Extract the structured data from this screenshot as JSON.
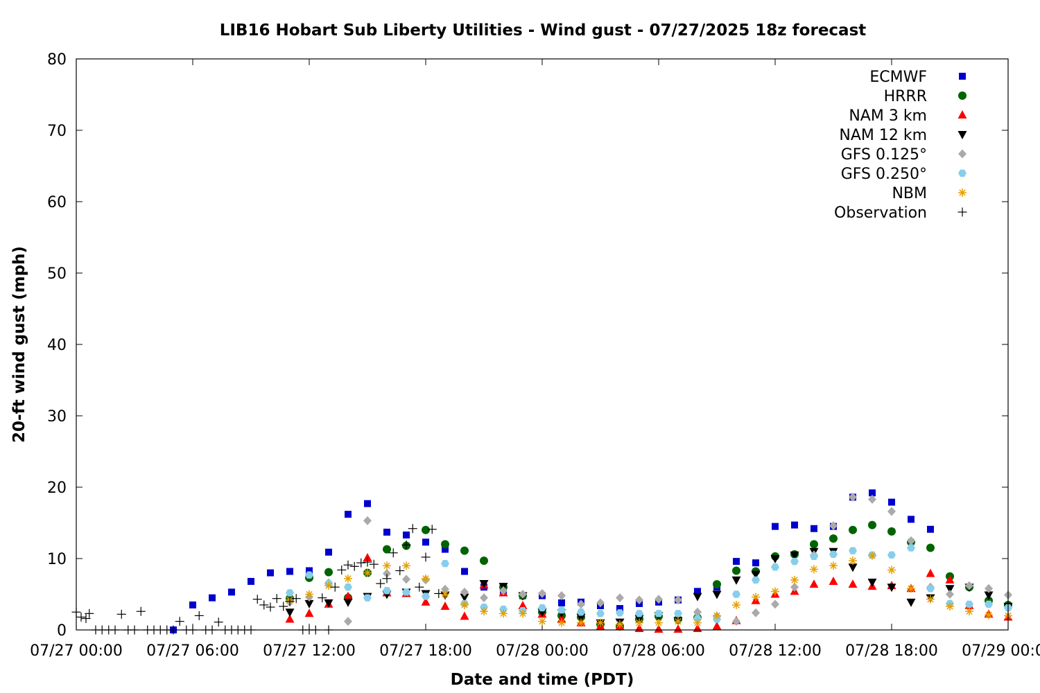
{
  "chart_data": {
    "type": "scatter",
    "title": "LIB16 Hobart Sub Liberty Utilities - Wind gust - 07/27/2025 18z forecast",
    "xlabel": "Date and time (PDT)",
    "ylabel": "20-ft wind gust (mph)",
    "ylim": [
      0,
      80
    ],
    "yticks": [
      0,
      10,
      20,
      30,
      40,
      50,
      60,
      70,
      80
    ],
    "xlim_hours": [
      0,
      48
    ],
    "xticks": [
      {
        "hour": 0,
        "label": "07/27 00:00"
      },
      {
        "hour": 6,
        "label": "07/27 06:00"
      },
      {
        "hour": 12,
        "label": "07/27 12:00"
      },
      {
        "hour": 18,
        "label": "07/27 18:00"
      },
      {
        "hour": 24,
        "label": "07/28 00:00"
      },
      {
        "hour": 30,
        "label": "07/28 06:00"
      },
      {
        "hour": 36,
        "label": "07/28 12:00"
      },
      {
        "hour": 42,
        "label": "07/28 18:00"
      },
      {
        "hour": 48,
        "label": "07/29 00:00"
      }
    ],
    "x_note": "x values are hours after 07/27 00:00 PDT",
    "legend_position": "top-right",
    "grid": false,
    "series": [
      {
        "name": "ECMWF",
        "marker": "square",
        "color": "#0000cc",
        "x": [
          5,
          6,
          7,
          8,
          9,
          10,
          11,
          12,
          13,
          14,
          15,
          16,
          17,
          18,
          19,
          20,
          21,
          22,
          23,
          24,
          25,
          26,
          27,
          28,
          29,
          30,
          31,
          32,
          33,
          34,
          35,
          36,
          37,
          38,
          39,
          40,
          41,
          42,
          43,
          44
        ],
        "y": [
          0,
          3.5,
          4.5,
          5.3,
          6.8,
          8,
          8.2,
          8.3,
          10.9,
          16.2,
          17.7,
          13.7,
          13.3,
          12.3,
          11.3,
          8.2,
          6,
          5.5,
          4.8,
          4.8,
          3.8,
          3.9,
          3.4,
          3,
          3.7,
          3.9,
          4.2,
          5.4,
          6,
          9.6,
          9.4,
          14.5,
          14.7,
          14.2,
          14.5,
          18.6,
          19.2,
          17.9,
          15.5,
          14.1
        ]
      },
      {
        "name": "HRRR",
        "marker": "circle",
        "color": "#006400",
        "x": [
          11,
          12,
          13,
          14,
          15,
          16,
          17,
          18,
          19,
          20,
          21,
          22,
          23,
          24,
          25,
          26,
          27,
          28,
          29,
          30,
          31,
          32,
          33,
          34,
          35,
          36,
          37,
          38,
          39,
          40,
          41,
          42,
          43,
          44,
          45,
          46,
          47,
          48
        ],
        "y": [
          4.4,
          7.3,
          8.1,
          4.5,
          8,
          11.3,
          11.8,
          14,
          12,
          11.1,
          9.7,
          6,
          4.8,
          2.5,
          2,
          1.8,
          0.8,
          0.5,
          1.5,
          1.9,
          1.5,
          1.7,
          6.4,
          8.3,
          8.2,
          10.3,
          10.6,
          12,
          12.8,
          14,
          14.7,
          13.8,
          12.3,
          11.5,
          7.5,
          6,
          4.1,
          3.5
        ]
      },
      {
        "name": "NAM 3 km",
        "marker": "triangle-up",
        "color": "#ff0000",
        "x": [
          11,
          12,
          13,
          14,
          15,
          16,
          17,
          18,
          19,
          20,
          21,
          22,
          23,
          24,
          25,
          26,
          27,
          28,
          29,
          30,
          31,
          32,
          33,
          34,
          35,
          36,
          37,
          38,
          39,
          40,
          41,
          42,
          43,
          44,
          45,
          46,
          47,
          48
        ],
        "y": [
          1.5,
          2.3,
          3.6,
          4.7,
          10.1,
          5.2,
          5.1,
          3.9,
          3.3,
          1.9,
          6.3,
          5.2,
          3.4,
          2.2,
          1.5,
          1,
          0.5,
          0.5,
          0.2,
          0.1,
          0.1,
          0.2,
          0.5,
          1.3,
          4.1,
          5,
          5.4,
          6.4,
          6.8,
          6.4,
          6.1,
          6.2,
          5.8,
          7.9,
          7,
          3.4,
          2.2,
          1.8
        ]
      },
      {
        "name": "NAM 12 km",
        "marker": "triangle-down",
        "color": "#000000",
        "x": [
          11,
          12,
          13,
          14,
          15,
          16,
          17,
          18,
          19,
          20,
          21,
          22,
          23,
          24,
          25,
          26,
          27,
          28,
          29,
          30,
          31,
          32,
          33,
          34,
          35,
          36,
          37,
          38,
          39,
          40,
          41,
          42,
          43,
          44,
          45,
          46,
          47,
          48
        ],
        "y": [
          2.5,
          3.7,
          3.8,
          3.9,
          4.7,
          5,
          5.3,
          5.1,
          4.9,
          4.6,
          6.5,
          6.1,
          4.8,
          2.5,
          2.4,
          1.8,
          1,
          1.1,
          1.6,
          2,
          1.3,
          4.7,
          5,
          7,
          7.8,
          10,
          10.5,
          11,
          11,
          8.8,
          6.7,
          6,
          3.9,
          4.5,
          5.8,
          6,
          4.9,
          3.3
        ]
      },
      {
        "name": "GFS 0.125°",
        "marker": "diamond",
        "color": "#aaaaaa",
        "x": [
          11,
          12,
          13,
          14,
          15,
          16,
          17,
          18,
          19,
          20,
          21,
          22,
          23,
          24,
          25,
          26,
          27,
          28,
          29,
          30,
          31,
          32,
          33,
          34,
          35,
          36,
          37,
          38,
          39,
          40,
          41,
          42,
          43,
          44,
          45,
          46,
          47,
          48
        ],
        "y": [
          3.9,
          4.6,
          6.6,
          1.2,
          15.3,
          7.9,
          7.1,
          7,
          5.7,
          5.3,
          4.5,
          5.5,
          5,
          5.1,
          4.8,
          3.6,
          3.8,
          4.5,
          4.2,
          4.3,
          4.2,
          2.5,
          1.9,
          1.2,
          2.4,
          3.6,
          6,
          10.5,
          14.6,
          18.6,
          18.3,
          16.6,
          12.5,
          6,
          5,
          6.2,
          5.8,
          4.9
        ]
      },
      {
        "name": "GFS 0.250°",
        "marker": "hexagon",
        "color": "#87ceeb",
        "x": [
          11,
          12,
          13,
          14,
          15,
          16,
          17,
          18,
          19,
          20,
          21,
          22,
          23,
          24,
          25,
          26,
          27,
          28,
          29,
          30,
          31,
          32,
          33,
          34,
          35,
          36,
          37,
          38,
          39,
          40,
          41,
          42,
          43,
          44,
          45,
          46,
          47,
          48
        ],
        "y": [
          5.2,
          7.7,
          6.5,
          6,
          4.5,
          5.5,
          5.3,
          4.7,
          9.3,
          3.7,
          3.2,
          2.9,
          2.7,
          3.1,
          2.8,
          2.5,
          2.3,
          2.4,
          2.3,
          2.3,
          2.3,
          1.6,
          1.5,
          5,
          7,
          8.8,
          9.6,
          10.3,
          10.6,
          11.1,
          10.5,
          10.5,
          11.5,
          5.8,
          3.7,
          3.6,
          3.6,
          3.1
        ]
      },
      {
        "name": "NBM",
        "marker": "asterisk",
        "color": "#e69f00",
        "x": [
          11,
          12,
          13,
          14,
          15,
          16,
          17,
          18,
          19,
          20,
          21,
          22,
          23,
          24,
          25,
          26,
          27,
          28,
          29,
          30,
          31,
          32,
          33,
          34,
          35,
          36,
          37,
          38,
          39,
          40,
          41,
          42,
          43,
          44,
          45,
          46,
          47,
          48
        ],
        "y": [
          4.2,
          5,
          6.2,
          7.2,
          8,
          9,
          9,
          7.2,
          5,
          3.5,
          2.6,
          2.3,
          2.3,
          1.2,
          1,
          1,
          1,
          0.8,
          1,
          1,
          1.2,
          1,
          2,
          3.5,
          4.6,
          5.4,
          7,
          8.5,
          9,
          9.7,
          10.4,
          8.4,
          5.8,
          4.3,
          3.3,
          2.6,
          2.1,
          2
        ]
      },
      {
        "name": "Observation",
        "marker": "plus",
        "color": "#000000",
        "x": [
          0,
          0.25,
          0.5,
          0.67,
          1,
          1.33,
          1.67,
          2,
          2.33,
          2.67,
          3,
          3.33,
          3.67,
          4,
          4.33,
          4.67,
          5,
          5.33,
          5.67,
          6,
          6.33,
          6.67,
          7,
          7.33,
          7.67,
          8,
          8.33,
          8.67,
          9,
          9.33,
          9.67,
          10,
          10.33,
          10.67,
          11,
          11.33,
          11.67,
          12,
          12.33,
          12.67,
          13,
          13.33,
          13.67,
          14,
          14.33,
          14.67,
          15,
          15.33,
          15.67,
          16,
          16.33,
          16.67,
          17,
          17.33,
          17.67,
          18,
          18.33,
          18.67
        ],
        "y": [
          2.5,
          1.8,
          1.6,
          2.3,
          0,
          0,
          0,
          0,
          2.2,
          0,
          0,
          2.6,
          0,
          0,
          0,
          0,
          0,
          1.2,
          0,
          0,
          2,
          0,
          0,
          1.1,
          0,
          0,
          0,
          0,
          0,
          4.3,
          3.5,
          3.2,
          4.4,
          3.3,
          4,
          4.4,
          0,
          0,
          0,
          4.5,
          0,
          6,
          8.4,
          9.1,
          8.9,
          9.4,
          9.5,
          9.2,
          6.5,
          7.2,
          10.8,
          8.3,
          11.9,
          14.2,
          6,
          10.2,
          14.1,
          5.1
        ]
      }
    ],
    "legend": [
      "ECMWF",
      "HRRR",
      "NAM 3 km",
      "NAM 12 km",
      "GFS 0.125°",
      "GFS 0.250°",
      "NBM",
      "Observation"
    ]
  }
}
